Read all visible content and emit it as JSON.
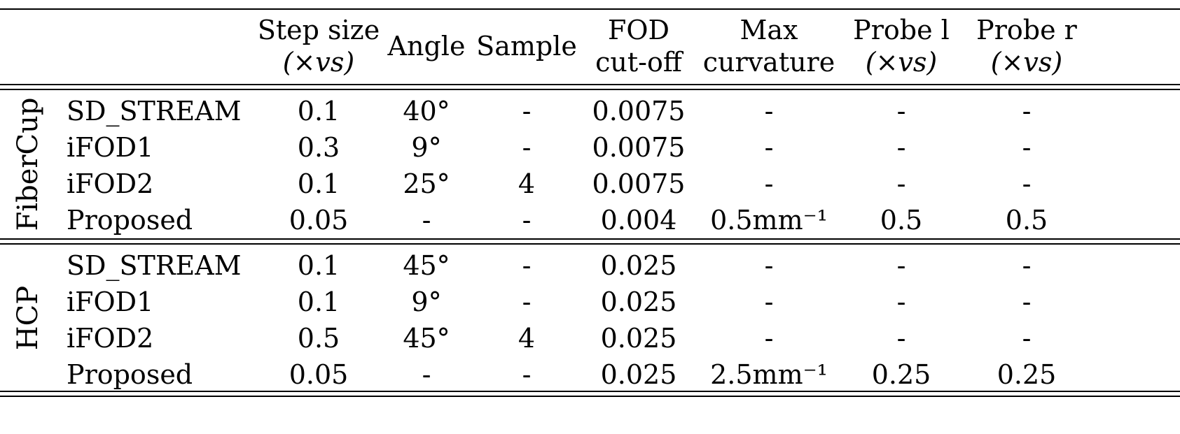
{
  "headers": {
    "step_1": "Step size",
    "step_2": "(×vs)",
    "angle": "Angle",
    "sample": "Sample",
    "fod_1": "FOD",
    "fod_2": "cut-off",
    "maxc_1": "Max",
    "maxc_2": "curvature",
    "probel_1": "Probe l",
    "probel_2": "(×vs)",
    "prober_1": "Probe r",
    "prober_2": "(×vs)"
  },
  "groups": [
    {
      "name": "FiberCup",
      "rows": [
        {
          "method": "SD_STREAM",
          "step": "0.1",
          "angle": "40°",
          "sample": "-",
          "fod": "0.0075",
          "maxc": "-",
          "probel": "-",
          "prober": "-"
        },
        {
          "method": "iFOD1",
          "step": "0.3",
          "angle": "9°",
          "sample": "-",
          "fod": "0.0075",
          "maxc": "-",
          "probel": "-",
          "prober": "-"
        },
        {
          "method": "iFOD2",
          "step": "0.1",
          "angle": "25°",
          "sample": "4",
          "fod": "0.0075",
          "maxc": "-",
          "probel": "-",
          "prober": "-"
        },
        {
          "method": "Proposed",
          "step": "0.05",
          "angle": "-",
          "sample": "-",
          "fod": "0.004",
          "maxc": "0.5mm⁻¹",
          "probel": "0.5",
          "prober": "0.5"
        }
      ]
    },
    {
      "name": "HCP",
      "rows": [
        {
          "method": "SD_STREAM",
          "step": "0.1",
          "angle": "45°",
          "sample": "-",
          "fod": "0.025",
          "maxc": "-",
          "probel": "-",
          "prober": "-"
        },
        {
          "method": "iFOD1",
          "step": "0.1",
          "angle": "9°",
          "sample": "-",
          "fod": "0.025",
          "maxc": "-",
          "probel": "-",
          "prober": "-"
        },
        {
          "method": "iFOD2",
          "step": "0.5",
          "angle": "45°",
          "sample": "4",
          "fod": "0.025",
          "maxc": "-",
          "probel": "-",
          "prober": "-"
        },
        {
          "method": "Proposed",
          "step": "0.05",
          "angle": "-",
          "sample": "-",
          "fod": "0.025",
          "maxc": "2.5mm⁻¹",
          "probel": "0.25",
          "prober": "0.25"
        }
      ]
    }
  ]
}
